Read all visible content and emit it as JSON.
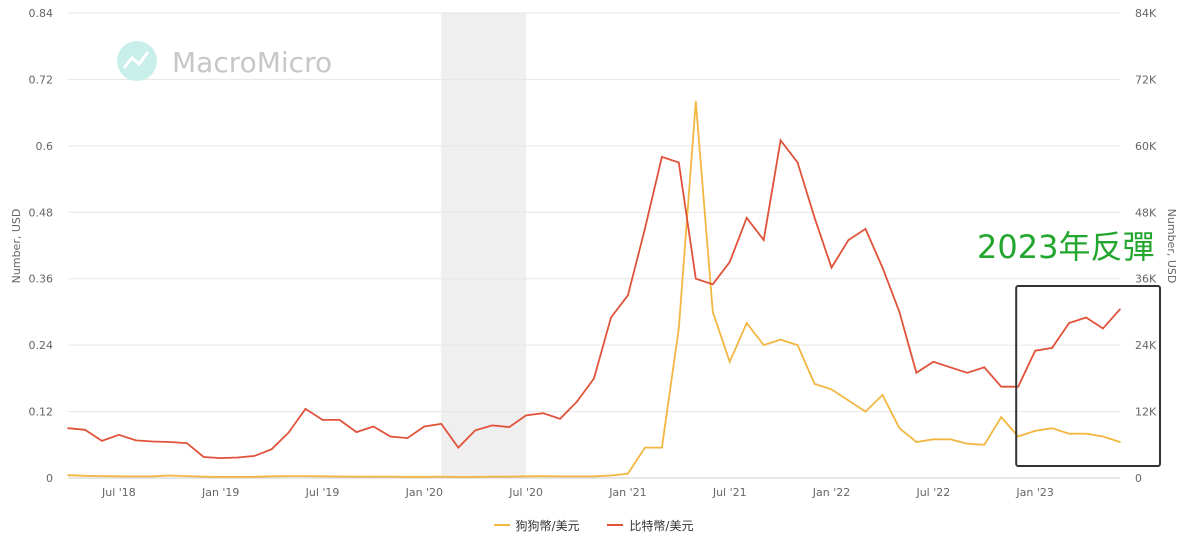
{
  "watermark": "MacroMicro",
  "annotation": "2023年反彈",
  "colors": {
    "doge": "#f2b642",
    "btc": "#e0523a",
    "annotation": "#22a62d",
    "box": "#333333",
    "shade": "#efefef"
  },
  "chart_data": {
    "type": "line",
    "title": "",
    "ylabel_left": "Number, USD",
    "ylabel_right": "Number, USD",
    "ylim_left": [
      0,
      0.84
    ],
    "ylim_right": [
      0,
      84000
    ],
    "yticks_left": [
      "0",
      "0.12",
      "0.24",
      "0.36",
      "0.48",
      "0.6",
      "0.72",
      "0.84"
    ],
    "yticks_right": [
      "0",
      "12K",
      "24K",
      "36K",
      "48K",
      "60K",
      "72K",
      "84K"
    ],
    "xticks": [
      "Jul '18",
      "Jan '19",
      "Jul '19",
      "Jan '20",
      "Jul '20",
      "Jan '21",
      "Jul '21",
      "Jan '22",
      "Jul '22",
      "Jan '23"
    ],
    "xrange": [
      "2018-04",
      "2023-06"
    ],
    "shaded_period": [
      "2020-02",
      "2020-07"
    ],
    "highlight_period": [
      "2022-12",
      "2023-07"
    ],
    "legend_position": "bottom-center",
    "series": [
      {
        "name": "狗狗幣/美元",
        "axis": "left",
        "x": [
          "2018-04",
          "2018-05",
          "2018-06",
          "2018-07",
          "2018-08",
          "2018-09",
          "2018-10",
          "2018-11",
          "2018-12",
          "2019-01",
          "2019-02",
          "2019-03",
          "2019-04",
          "2019-05",
          "2019-06",
          "2019-07",
          "2019-08",
          "2019-09",
          "2019-10",
          "2019-11",
          "2019-12",
          "2020-01",
          "2020-02",
          "2020-03",
          "2020-04",
          "2020-05",
          "2020-06",
          "2020-07",
          "2020-08",
          "2020-09",
          "2020-10",
          "2020-11",
          "2020-12",
          "2021-01",
          "2021-02",
          "2021-03",
          "2021-04",
          "2021-05",
          "2021-06",
          "2021-07",
          "2021-08",
          "2021-09",
          "2021-10",
          "2021-11",
          "2021-12",
          "2022-01",
          "2022-02",
          "2022-03",
          "2022-04",
          "2022-05",
          "2022-06",
          "2022-07",
          "2022-08",
          "2022-09",
          "2022-10",
          "2022-11",
          "2022-12",
          "2023-01",
          "2023-02",
          "2023-03",
          "2023-04",
          "2023-05",
          "2023-06"
        ],
        "values": [
          0.005,
          0.004,
          0.0035,
          0.003,
          0.0028,
          0.003,
          0.0045,
          0.0035,
          0.0025,
          0.002,
          0.002,
          0.0022,
          0.003,
          0.0035,
          0.0035,
          0.003,
          0.0027,
          0.0025,
          0.0025,
          0.0025,
          0.0022,
          0.0022,
          0.0025,
          0.0018,
          0.002,
          0.0025,
          0.0025,
          0.003,
          0.0033,
          0.0028,
          0.0028,
          0.003,
          0.0045,
          0.008,
          0.055,
          0.055,
          0.27,
          0.68,
          0.3,
          0.21,
          0.28,
          0.24,
          0.25,
          0.24,
          0.17,
          0.16,
          0.14,
          0.12,
          0.15,
          0.09,
          0.065,
          0.07,
          0.07,
          0.062,
          0.06,
          0.11,
          0.075,
          0.085,
          0.09,
          0.08,
          0.08,
          0.075,
          0.065
        ]
      },
      {
        "name": "比特幣/美元",
        "axis": "right",
        "x": [
          "2018-04",
          "2018-05",
          "2018-06",
          "2018-07",
          "2018-08",
          "2018-09",
          "2018-10",
          "2018-11",
          "2018-12",
          "2019-01",
          "2019-02",
          "2019-03",
          "2019-04",
          "2019-05",
          "2019-06",
          "2019-07",
          "2019-08",
          "2019-09",
          "2019-10",
          "2019-11",
          "2019-12",
          "2020-01",
          "2020-02",
          "2020-03",
          "2020-04",
          "2020-05",
          "2020-06",
          "2020-07",
          "2020-08",
          "2020-09",
          "2020-10",
          "2020-11",
          "2020-12",
          "2021-01",
          "2021-02",
          "2021-03",
          "2021-04",
          "2021-05",
          "2021-06",
          "2021-07",
          "2021-08",
          "2021-09",
          "2021-10",
          "2021-11",
          "2021-12",
          "2022-01",
          "2022-02",
          "2022-03",
          "2022-04",
          "2022-05",
          "2022-06",
          "2022-07",
          "2022-08",
          "2022-09",
          "2022-10",
          "2022-11",
          "2022-12",
          "2023-01",
          "2023-02",
          "2023-03",
          "2023-04",
          "2023-05",
          "2023-06"
        ],
        "values": [
          9000,
          8700,
          6700,
          7800,
          6800,
          6600,
          6500,
          6300,
          3800,
          3600,
          3700,
          4000,
          5200,
          8200,
          12500,
          10500,
          10500,
          8300,
          9300,
          7500,
          7200,
          9300,
          9800,
          5500,
          8600,
          9500,
          9200,
          11300,
          11700,
          10700,
          13800,
          18000,
          29000,
          33000,
          45000,
          58000,
          57000,
          36000,
          35000,
          39000,
          47000,
          43000,
          61000,
          57000,
          47000,
          38000,
          43000,
          45000,
          38000,
          30000,
          19000,
          21000,
          20000,
          19000,
          20000,
          16500,
          16500,
          23000,
          23500,
          28000,
          29000,
          27000,
          30500
        ]
      }
    ]
  }
}
